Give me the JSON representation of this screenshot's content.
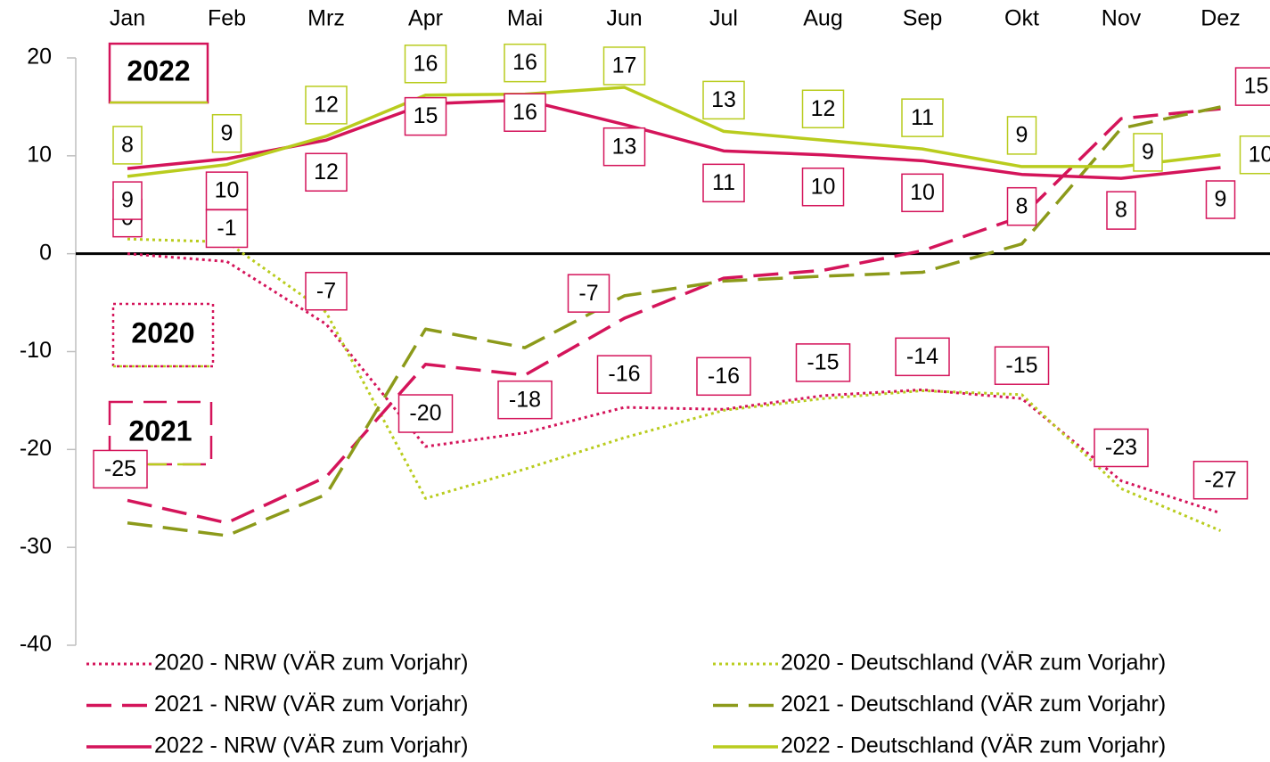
{
  "chart_data": {
    "type": "line",
    "categories": [
      "Jan",
      "Feb",
      "Mrz",
      "Apr",
      "Mai",
      "Jun",
      "Jul",
      "Aug",
      "Sep",
      "Okt",
      "Nov",
      "Dez"
    ],
    "ylim": [
      -40,
      20
    ],
    "yticks": [
      -40,
      -30,
      -20,
      -10,
      0,
      10,
      20
    ],
    "annotations": [
      "2022",
      "2020",
      "2021"
    ],
    "series": [
      {
        "name": "2020 - NRW (VÄR zum Vorjahr)",
        "color": "#d4145a",
        "style": "dotted",
        "values": [
          0,
          -0.8,
          -7.2,
          -19.7,
          -18.3,
          -15.7,
          -15.9,
          -14.5,
          -13.9,
          -14.8,
          -23.2,
          -26.5
        ],
        "value_labels": [
          "0",
          "-1",
          "-7",
          "-20",
          "-18",
          "-16",
          "-16",
          "-15",
          "-14",
          "-15",
          "-23",
          "-27"
        ]
      },
      {
        "name": "2020 - Deutschland (VÄR zum Vorjahr)",
        "color": "#b9cc1e",
        "style": "dotted",
        "values": [
          1.5,
          1.2,
          -6,
          -25,
          -22,
          -18.8,
          -16,
          -14.8,
          -14,
          -14.4,
          -24,
          -28.3
        ]
      },
      {
        "name": "2021 - NRW (VÄR zum Vorjahr)",
        "color": "#d4145a",
        "style": "dashed",
        "values": [
          -25.2,
          -27.5,
          -22.8,
          -11.3,
          -12.4,
          -6.6,
          -2.5,
          -1.7,
          0.3,
          3.8,
          13.8,
          14.8
        ],
        "value_labels": [
          "-25",
          null,
          null,
          null,
          null,
          "-7",
          null,
          null,
          null,
          null,
          null,
          "15"
        ]
      },
      {
        "name": "2021 - Deutschland (VÄR zum Vorjahr)",
        "color": "#8c9a1a",
        "style": "dashed",
        "values": [
          -27.5,
          -28.8,
          -24.6,
          -7.7,
          -9.6,
          -4.3,
          -2.8,
          -2.3,
          -1.9,
          1,
          12.8,
          15
        ]
      },
      {
        "name": "2022 - NRW (VÄR zum Vorjahr)",
        "color": "#d4145a",
        "style": "solid",
        "values": [
          8.7,
          9.7,
          11.6,
          15.3,
          15.7,
          13.2,
          10.5,
          10.1,
          9.5,
          8.1,
          7.7,
          8.8
        ],
        "value_labels": [
          "9",
          "10",
          "12",
          "15",
          "16",
          "13",
          "11",
          "10",
          "10",
          "8",
          "8",
          "9"
        ]
      },
      {
        "name": "2022 - Deutschland (VÄR zum Vorjahr)",
        "color": "#b9cc1e",
        "style": "solid",
        "values": [
          7.9,
          9.1,
          12,
          16.2,
          16.3,
          17,
          12.5,
          11.6,
          10.7,
          8.9,
          8.9,
          10.1
        ],
        "value_labels": [
          "8",
          "9",
          "12",
          "16",
          "16",
          "17",
          "13",
          "12",
          "11",
          "9",
          "9",
          "10"
        ]
      }
    ]
  }
}
